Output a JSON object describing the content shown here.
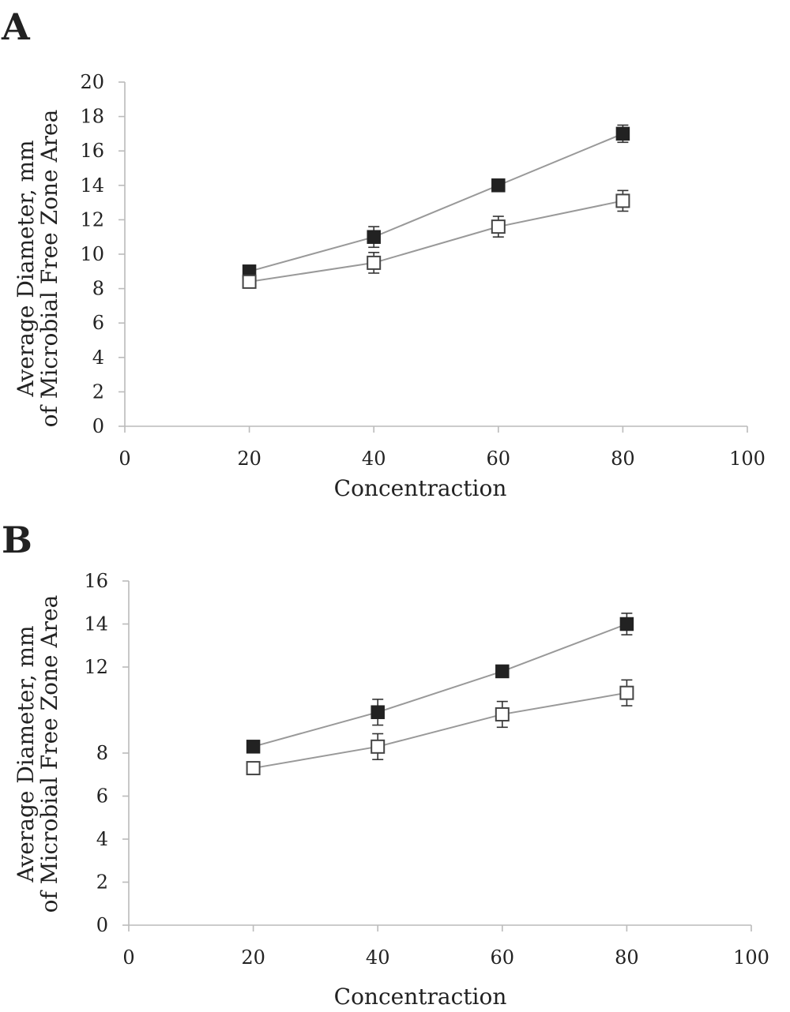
{
  "chart_data": [
    {
      "panel": "A",
      "type": "scatter",
      "xlabel": "Concentraction",
      "ylabel": [
        "Average Diameter, mm",
        "of Microbial Free Zone Area"
      ],
      "xlim": [
        0,
        100
      ],
      "ylim": [
        0,
        20
      ],
      "xticks": [
        "0",
        "20",
        "40",
        "60",
        "80",
        "100"
      ],
      "yticks": [
        "0",
        "2",
        "4",
        "6",
        "8",
        "10",
        "12",
        "14",
        "16",
        "18",
        "20"
      ],
      "grid": false,
      "series": [
        {
          "marker": "filled-square",
          "color": "#222222",
          "x": [
            20,
            40,
            60,
            80
          ],
          "y": [
            9.0,
            11.0,
            14.0,
            17.0
          ],
          "err": [
            0.2,
            0.6,
            0.2,
            0.5
          ]
        },
        {
          "marker": "open-square",
          "color": "#444444",
          "x": [
            20,
            40,
            60,
            80
          ],
          "y": [
            8.4,
            9.5,
            11.6,
            13.1
          ],
          "err": [
            0.2,
            0.6,
            0.6,
            0.6
          ]
        }
      ]
    },
    {
      "panel": "B",
      "type": "scatter",
      "xlabel": "Concentraction",
      "ylabel": [
        "Average Diameter, mm",
        "of Microbial Free Zone Area"
      ],
      "xlim": [
        0,
        100
      ],
      "ylim": [
        0,
        16
      ],
      "xticks": [
        "0",
        "20",
        "40",
        "60",
        "80",
        "100"
      ],
      "yticks": [
        "0",
        "2",
        "4",
        "6",
        "8",
        "12",
        "14",
        "16"
      ],
      "grid": false,
      "series": [
        {
          "marker": "filled-square",
          "color": "#222222",
          "x": [
            20,
            40,
            60,
            80
          ],
          "y": [
            8.3,
            9.9,
            11.8,
            14.0
          ],
          "err": [
            0.2,
            0.6,
            0.2,
            0.5
          ]
        },
        {
          "marker": "open-square",
          "color": "#444444",
          "x": [
            20,
            40,
            60,
            80
          ],
          "y": [
            7.3,
            8.3,
            9.8,
            10.8
          ],
          "err": [
            0.2,
            0.6,
            0.6,
            0.6
          ]
        }
      ]
    }
  ]
}
